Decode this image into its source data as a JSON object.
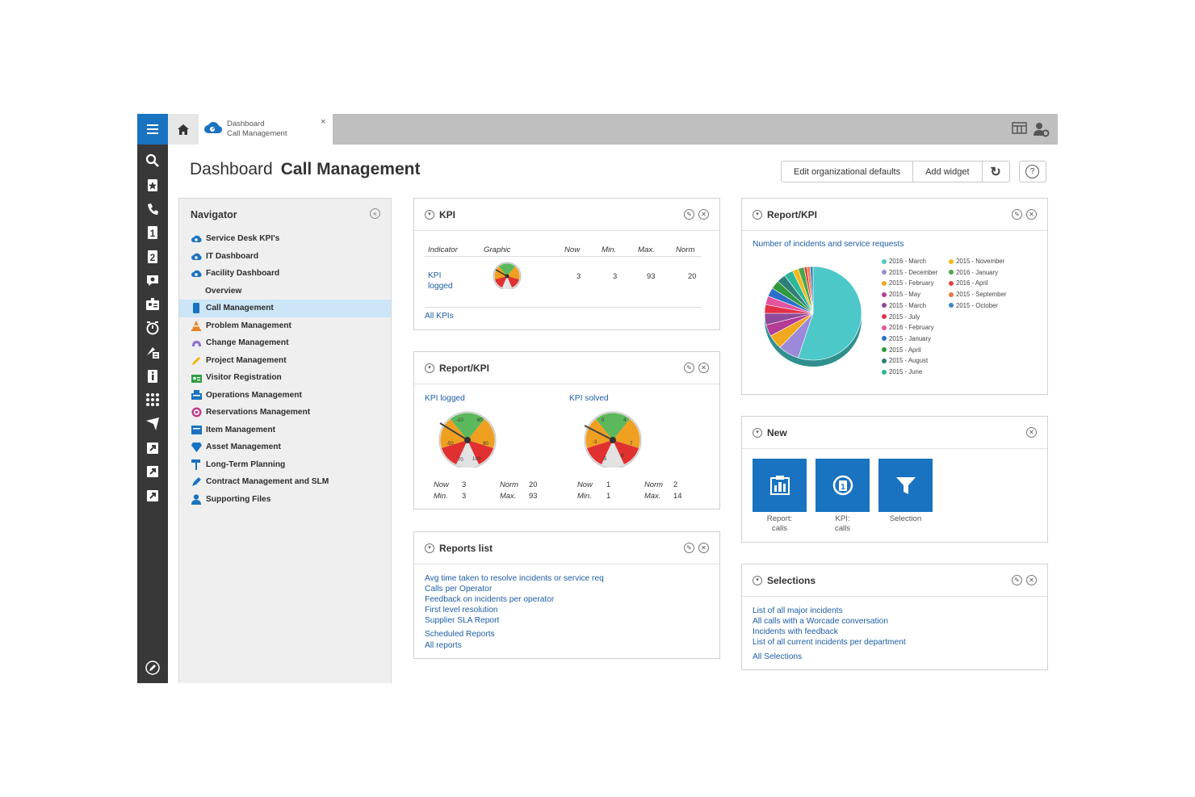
{
  "tab": {
    "line1": "Dashboard",
    "line2": "Call Management",
    "close": "×"
  },
  "header": {
    "prefix": "Dashboard",
    "current": "Call Management"
  },
  "buttons": {
    "edit_defaults": "Edit organizational defaults",
    "add_widget": "Add widget",
    "refresh": "↻",
    "help": "?"
  },
  "navigator": {
    "title": "Navigator",
    "items": [
      {
        "label": "Service Desk KPI's",
        "icon": "cloud-icon",
        "color": "#1a73c0"
      },
      {
        "label": "IT Dashboard",
        "icon": "cloud-icon",
        "color": "#1a73c0"
      },
      {
        "label": "Facility Dashboard",
        "icon": "cloud-icon",
        "color": "#1a73c0"
      },
      {
        "label": "Overview",
        "icon": "",
        "color": ""
      },
      {
        "label": "Call Management",
        "icon": "phone-icon",
        "color": "#1a73c0"
      },
      {
        "label": "Problem Management",
        "icon": "cone-icon",
        "color": "#e8822a"
      },
      {
        "label": "Change Management",
        "icon": "wrench-icon",
        "color": "#8a6fd4"
      },
      {
        "label": "Project Management",
        "icon": "pencil-icon",
        "color": "#f0b400"
      },
      {
        "label": "Visitor Registration",
        "icon": "badge-icon",
        "color": "#2e9e44"
      },
      {
        "label": "Operations Management",
        "icon": "building-icon",
        "color": "#1a73c0"
      },
      {
        "label": "Reservations Management",
        "icon": "target-icon",
        "color": "#c03a8a"
      },
      {
        "label": "Item Management",
        "icon": "box-icon",
        "color": "#1a73c0"
      },
      {
        "label": "Asset Management",
        "icon": "diamond-icon",
        "color": "#1a73c0"
      },
      {
        "label": "Long-Term Planning",
        "icon": "paint-roller-icon",
        "color": "#1a73c0"
      },
      {
        "label": "Contract Management and SLM",
        "icon": "pen-icon",
        "color": "#1a73c0"
      },
      {
        "label": "Supporting Files",
        "icon": "user-icon",
        "color": "#1a73c0"
      }
    ]
  },
  "kpi": {
    "title": "KPI",
    "headers": [
      "Indicator",
      "Graphic",
      "Now",
      "Min.",
      "Max.",
      "Norm"
    ],
    "row": {
      "indicator_line1": "KPI",
      "indicator_line2": "logged",
      "now": "3",
      "min": "3",
      "max": "93",
      "norm": "20"
    },
    "all_link": "All KPIs"
  },
  "report_kpi_gauges": {
    "title": "Report/KPI",
    "gauges": [
      {
        "title": "KPI logged",
        "labels": [
          "-10",
          "60",
          "-50",
          "90",
          "70",
          "100"
        ],
        "now_label": "Now",
        "now": "3",
        "min_label": "Min.",
        "min": "3",
        "norm_label": "Norm",
        "norm": "20",
        "max_label": "Max.",
        "max": "93"
      },
      {
        "title": "KPI solved",
        "labels": [
          "0",
          "4",
          "-3",
          "7",
          "-5",
          "8"
        ],
        "now_label": "Now",
        "now": "1",
        "min_label": "Min.",
        "min": "1",
        "norm_label": "Norm",
        "norm": "2",
        "max_label": "Max.",
        "max": "14"
      }
    ]
  },
  "reports_list": {
    "title": "Reports list",
    "links": [
      "Avg time taken to resolve incidents or service req",
      "Calls per Operator",
      "Feedback on incidents per operator",
      "First level resolution",
      "Supplier SLA Report"
    ],
    "scheduled": "Scheduled Reports",
    "all": "All reports"
  },
  "report_pie": {
    "title": "Report/KPI",
    "subtitle": "Number of incidents and service requests"
  },
  "chart_data": {
    "type": "pie",
    "title": "Number of incidents and service requests",
    "categories": [
      "2016 - March",
      "2015 - December",
      "2015 - February",
      "2015 - May",
      "2015 - March",
      "2015 - July",
      "2016 - February",
      "2015 - January",
      "2015 - April",
      "2015 - August",
      "2015 - June",
      "2015 - November",
      "2016 - January",
      "2016 - April",
      "2015 - September",
      "2015 - October"
    ],
    "values": [
      55,
      7,
      5,
      4,
      4,
      3,
      3,
      3,
      3,
      3,
      3,
      2,
      2,
      1,
      1,
      1
    ],
    "colors": [
      "#4dc8c8",
      "#9b8ad9",
      "#f0a81e",
      "#b53c95",
      "#8d4a99",
      "#e23048",
      "#e3559f",
      "#2c6fc7",
      "#2f9a3c",
      "#2e7e7a",
      "#2bb79a",
      "#f5b81c",
      "#4aa64f",
      "#e6453d",
      "#ef7744",
      "#3f86c9"
    ],
    "legend_position": "right"
  },
  "new": {
    "title": "New",
    "tiles": [
      {
        "label1": "Report:",
        "label2": "calls"
      },
      {
        "label1": "KPI:",
        "label2": "calls"
      },
      {
        "label1": "Selection",
        "label2": ""
      }
    ]
  },
  "selections": {
    "title": "Selections",
    "links": [
      "List of all major incidents",
      "All calls with a Worcade conversation",
      "Incidents with feedback",
      "List of all current incidents per department"
    ],
    "all": "All Selections"
  },
  "icons": {
    "edit": "✎",
    "close": "✕",
    "chevron": "▾",
    "collapse": "«"
  }
}
